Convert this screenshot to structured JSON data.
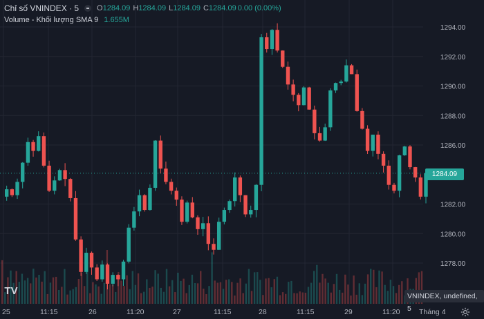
{
  "legend": {
    "symbol_title": "Chỉ số VNINDEX · 5",
    "o_key": "O",
    "o_val": "1284.09",
    "h_key": "H",
    "h_val": "1284.09",
    "l_key": "L",
    "l_val": "1284.09",
    "c_key": "C",
    "c_val": "1284.09",
    "change": "0.00 (0.00%)",
    "volume_title": "Volume - Khối lượng SMA 9",
    "volume_value": "1.655M"
  },
  "price_axis": {
    "ticks": [
      "1294.00",
      "1292.00",
      "1290.00",
      "1288.00",
      "1286.00",
      "1282.00",
      "1280.00",
      "1278.00"
    ],
    "current_price": "1284.09"
  },
  "time_axis": {
    "labels": [
      "25",
      "11:15",
      "26",
      "11:20",
      "27",
      "11:15",
      "28",
      "11:15",
      "29",
      "11:20",
      "Tháng 4"
    ]
  },
  "footer_badge": "VNINDEX, undefined, 5",
  "logo_text": "TV",
  "colors": {
    "background": "#161a25",
    "up": "#26a69a",
    "down": "#ef5350",
    "grid": "#232632",
    "text": "#b2b5be"
  },
  "chart_data": {
    "type": "candlestick",
    "ylim": [
      1276.5,
      1295.0
    ],
    "y_ticks": [
      1278,
      1280,
      1282,
      1286,
      1288,
      1290,
      1292,
      1294
    ],
    "current_price": 1284.09,
    "grid": true,
    "series": [
      {
        "name": "Chỉ số VNINDEX · 5",
        "close_path": [
          1282.5,
          1283.0,
          1282.6,
          1283.5,
          1284.8,
          1286.2,
          1285.6,
          1286.6,
          1284.6,
          1282.9,
          1283.6,
          1284.3,
          1283.7,
          1282.4,
          1279.6,
          1277.4,
          1278.7,
          1277.7,
          1276.9,
          1277.9,
          1276.6,
          1277.2,
          1276.9,
          1278.1,
          1280.4,
          1281.5,
          1282.6,
          1281.6,
          1283.1,
          1286.3,
          1284.4,
          1283.5,
          1282.9,
          1282.3,
          1280.8,
          1282.1,
          1281.1,
          1280.3,
          1280.7,
          1279.3,
          1278.9,
          1280.8,
          1281.6,
          1282.2,
          1283.8,
          1282.6,
          1281.3,
          1281.6,
          1283.3,
          1293.3,
          1292.5,
          1293.8,
          1292.4,
          1291.3,
          1290.1,
          1289.4,
          1288.7,
          1289.9,
          1288.4,
          1286.8,
          1286.3,
          1287.2,
          1289.7,
          1290.2,
          1290.3,
          1291.4,
          1290.8,
          1288.3,
          1287.1,
          1285.6,
          1286.7,
          1285.4,
          1284.6,
          1283.3,
          1282.9,
          1285.3,
          1285.9,
          1284.5,
          1283.8,
          1282.5,
          1284.1
        ],
        "volume_last": 1655000
      }
    ]
  }
}
